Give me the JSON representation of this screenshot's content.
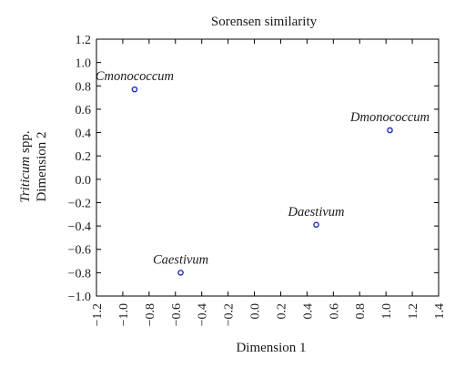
{
  "chart_data": {
    "type": "scatter",
    "title": "Sorensen similarity",
    "xlabel": "Dimension 1",
    "ylabel_italic": "Triticum",
    "ylabel_line1_rest": " spp.",
    "ylabel_line2": "Dimension 2",
    "xlim": [
      -1.2,
      1.4
    ],
    "ylim": [
      -1.0,
      1.2
    ],
    "xticks": [
      -1.2,
      -1.0,
      -0.8,
      -0.6,
      -0.4,
      -0.2,
      0.0,
      0.2,
      0.4,
      0.6,
      0.8,
      1.0,
      1.2,
      1.4
    ],
    "xtick_labels": [
      "−1.2",
      "−1.0",
      "−0.8",
      "−0.6",
      "−0.4",
      "−0.2",
      "0.0",
      "0.2",
      "0.4",
      "0.6",
      "0.8",
      "1.0",
      "1.2",
      "1.4"
    ],
    "yticks": [
      1.2,
      1.0,
      0.8,
      0.6,
      0.4,
      0.2,
      0.0,
      -0.2,
      -0.4,
      -0.6,
      -0.8,
      -1.0
    ],
    "ytick_labels": [
      "1.2",
      "1.0",
      "0.8",
      "0.6",
      "0.4",
      "0.2",
      "0.0",
      "−0.2",
      "−0.4",
      "−0.6",
      "−0.8",
      "−1.0"
    ],
    "grid": false,
    "marker_color": "#1f2db5",
    "points": [
      {
        "label": "Cmonococcum",
        "x": -0.91,
        "y": 0.77
      },
      {
        "label": "Dmonococcum",
        "x": 1.03,
        "y": 0.42
      },
      {
        "label": "Daestivum",
        "x": 0.47,
        "y": -0.39
      },
      {
        "label": "Caestivum",
        "x": -0.56,
        "y": -0.8
      }
    ]
  }
}
